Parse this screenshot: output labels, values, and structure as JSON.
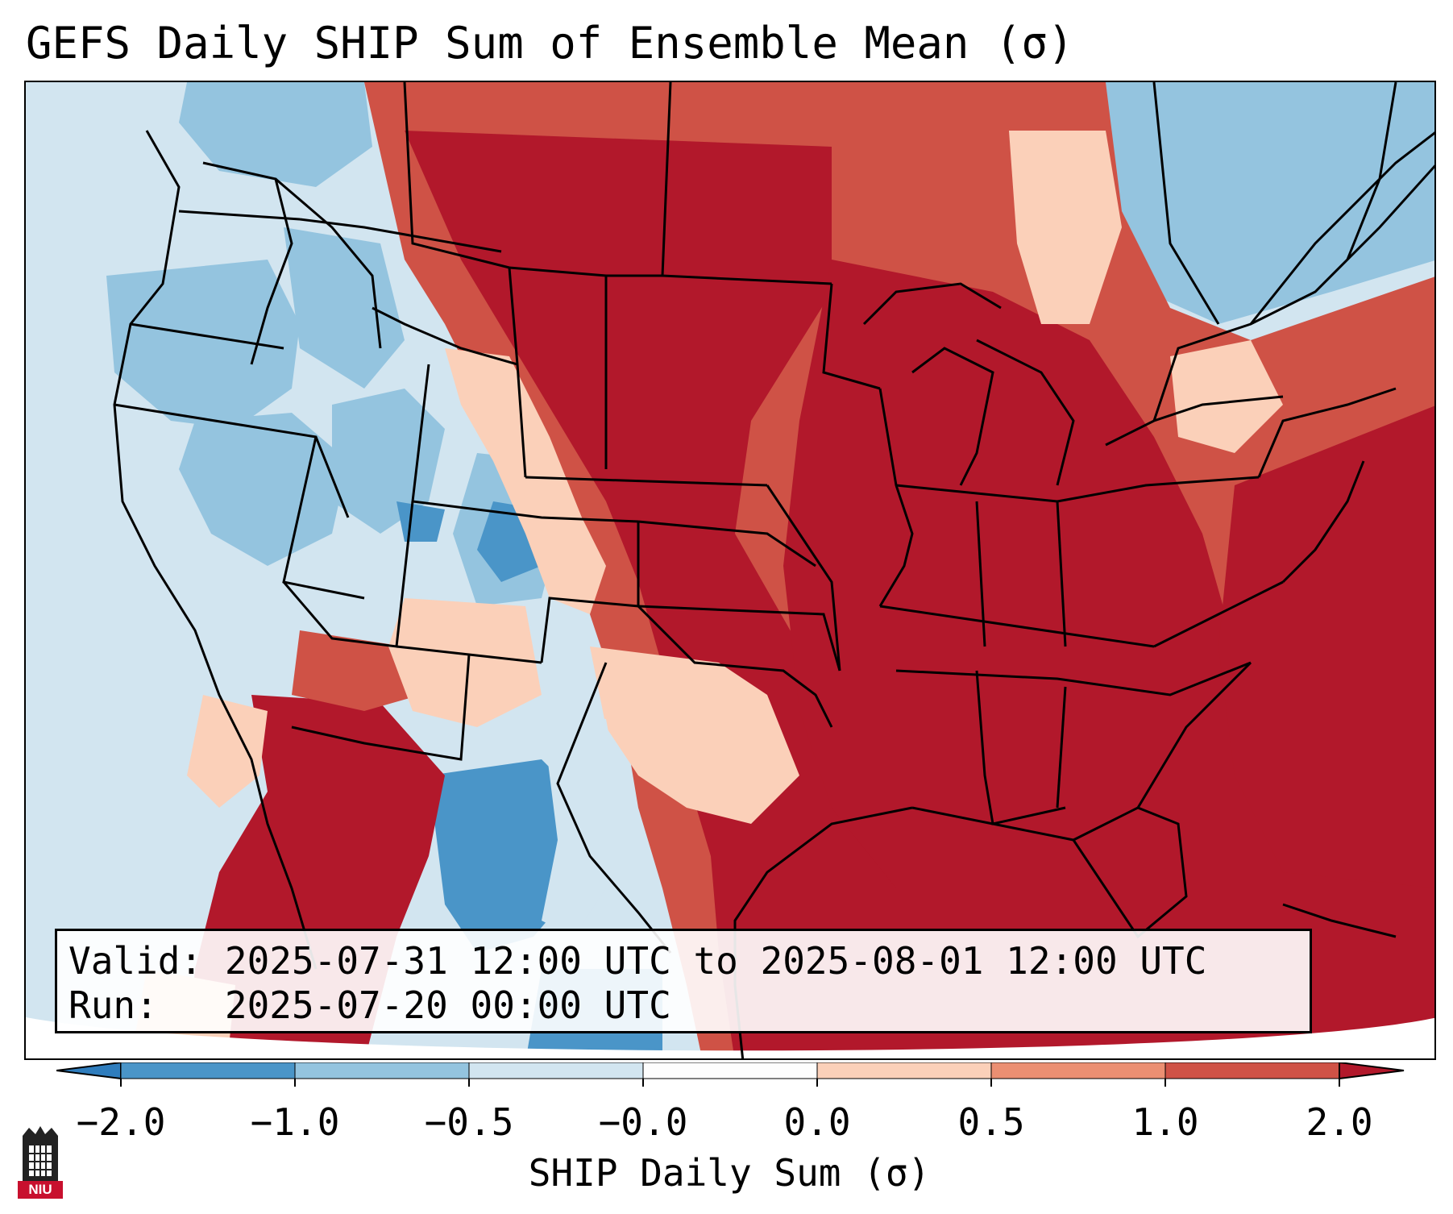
{
  "title": "GEFS Daily SHIP Sum of Ensemble Mean (σ)",
  "info": {
    "valid_label": "Valid:",
    "valid_value": "2025-07-31 12:00 UTC to 2025-08-01 12:00 UTC",
    "run_label": "Run:",
    "run_value": "2025-07-20 00:00 UTC"
  },
  "colorbar": {
    "label": "SHIP Daily Sum (σ)",
    "ticks": [
      "−2.0",
      "−1.0",
      "−0.5",
      "−0.0",
      "0.0",
      "0.5",
      "1.0",
      "2.0"
    ],
    "colors": [
      "#2f7dbd",
      "#4a95c8",
      "#94c4df",
      "#d2e5f0",
      "#fdfdfd",
      "#fbd0b9",
      "#eb8f72",
      "#cf5246",
      "#b2182b"
    ]
  },
  "logo": {
    "text": "NIU",
    "color": "#c8102e"
  }
}
